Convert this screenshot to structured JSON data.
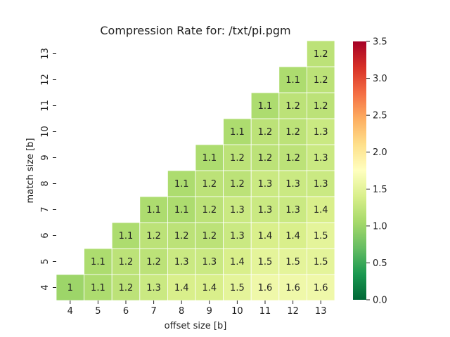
{
  "chart_data": {
    "type": "heatmap",
    "title": "Compression Rate for: /txt/pi.pgm",
    "xlabel": "offset size [b]",
    "ylabel": "match size [b]",
    "x_categories": [
      "4",
      "5",
      "6",
      "7",
      "8",
      "9",
      "10",
      "11",
      "12",
      "13"
    ],
    "y_categories": [
      "4",
      "5",
      "6",
      "7",
      "8",
      "9",
      "10",
      "11",
      "12",
      "13"
    ],
    "values": [
      [
        1,
        1.1,
        1.2,
        1.3,
        1.4,
        1.4,
        1.5,
        1.6,
        1.6,
        1.6
      ],
      [
        null,
        1.1,
        1.2,
        1.2,
        1.3,
        1.3,
        1.4,
        1.5,
        1.5,
        1.5
      ],
      [
        null,
        null,
        1.1,
        1.2,
        1.2,
        1.2,
        1.3,
        1.4,
        1.4,
        1.5
      ],
      [
        null,
        null,
        null,
        1.1,
        1.1,
        1.2,
        1.3,
        1.3,
        1.3,
        1.4
      ],
      [
        null,
        null,
        null,
        null,
        1.1,
        1.2,
        1.2,
        1.3,
        1.3,
        1.3
      ],
      [
        null,
        null,
        null,
        null,
        null,
        1.1,
        1.2,
        1.2,
        1.2,
        1.3
      ],
      [
        null,
        null,
        null,
        null,
        null,
        null,
        1.1,
        1.2,
        1.2,
        1.3
      ],
      [
        null,
        null,
        null,
        null,
        null,
        null,
        null,
        1.1,
        1.2,
        1.2
      ],
      [
        null,
        null,
        null,
        null,
        null,
        null,
        null,
        null,
        1.1,
        1.2
      ],
      [
        null,
        null,
        null,
        null,
        null,
        null,
        null,
        null,
        null,
        1.2
      ]
    ],
    "colorbar": {
      "min": 0.0,
      "max": 3.5,
      "ticks": [
        "0.0",
        "0.5",
        "1.0",
        "1.5",
        "2.0",
        "2.5",
        "3.0",
        "3.5"
      ],
      "colormap": "RdYlGn_r",
      "stops": [
        "#006837",
        "#1a9850",
        "#66bd63",
        "#a6d96a",
        "#d9ef8b",
        "#ffffbf",
        "#fee08b",
        "#fdae61",
        "#f46d43",
        "#d73027",
        "#a50026"
      ]
    }
  }
}
